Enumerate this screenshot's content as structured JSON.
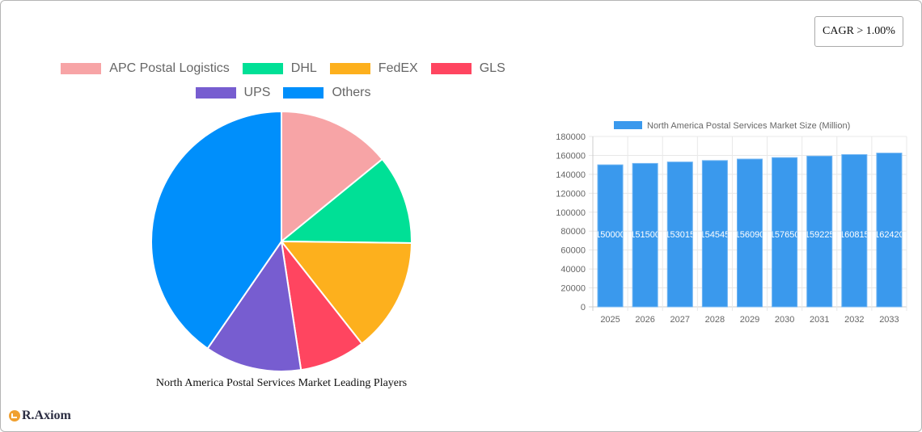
{
  "badge": {
    "cagr_label": "CAGR > 1.00%"
  },
  "logo": {
    "text": "R.Axiom"
  },
  "pie": {
    "title": "North America Postal Services Market Leading Players",
    "legend": [
      {
        "label": "APC Postal Logistics",
        "color": "#f7a4a6"
      },
      {
        "label": "DHL",
        "color": "#00e096"
      },
      {
        "label": "FedEX",
        "color": "#fdb01d"
      },
      {
        "label": "GLS",
        "color": "#ff4560"
      },
      {
        "label": "UPS",
        "color": "#775dd0"
      },
      {
        "label": "Others",
        "color": "#008ffb"
      }
    ]
  },
  "bar": {
    "legend_label": "North America Postal Services Market Size (Million)",
    "color": "#3a99ed"
  },
  "chart_data": [
    {
      "type": "pie",
      "title": "North America Postal Services Market Leading Players",
      "categories": [
        "APC Postal Logistics",
        "DHL",
        "FedEX",
        "GLS",
        "UPS",
        "Others"
      ],
      "values": [
        14.1,
        11.1,
        14.2,
        8.2,
        12.0,
        40.4
      ],
      "colors": [
        "#f7a4a6",
        "#00e096",
        "#fdb01d",
        "#ff4560",
        "#775dd0",
        "#008ffb"
      ],
      "legend_position": "top"
    },
    {
      "type": "bar",
      "title": "",
      "legend": [
        "North America Postal Services Market Size (Million)"
      ],
      "categories": [
        "2025",
        "2026",
        "2027",
        "2028",
        "2029",
        "2030",
        "2031",
        "2032",
        "2033"
      ],
      "values": [
        150000,
        151500,
        153015,
        154545,
        156090,
        157650,
        159225,
        160815,
        162420
      ],
      "xlabel": "",
      "ylabel": "",
      "ylim": [
        0,
        180000
      ],
      "yticks": [
        0,
        20000,
        40000,
        60000,
        80000,
        100000,
        120000,
        140000,
        160000,
        180000
      ],
      "grid": true,
      "legend_position": "top"
    }
  ]
}
